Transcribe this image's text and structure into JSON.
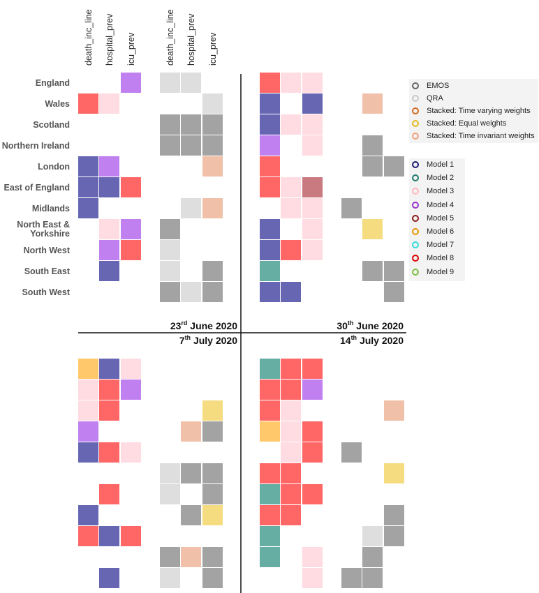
{
  "rows": [
    "England",
    "Wales",
    "Scotland",
    "Northern Ireland",
    "London",
    "East of England",
    "Midlands",
    "North East &\nYorkshire",
    "North West",
    "South East",
    "South West"
  ],
  "columns": [
    "death_inc_line",
    "hospital_prev",
    "icu_prev",
    "death_inc_line",
    "hospital_prev",
    "icu_prev"
  ],
  "panels": [
    {
      "date_day": "23",
      "date_suffix": "rd",
      "date_rest": " June 2020"
    },
    {
      "date_day": "30",
      "date_suffix": "th",
      "date_rest": " June 2020"
    },
    {
      "date_day": "7",
      "date_suffix": "th",
      "date_rest": " July 2020"
    },
    {
      "date_day": "14",
      "date_suffix": "th",
      "date_rest": " July 2020"
    }
  ],
  "legend_methods": [
    {
      "label": "EMOS",
      "color": "#666666"
    },
    {
      "label": "QRA",
      "color": "#c8c8c8"
    },
    {
      "label": "Stacked: Time varying weights",
      "color": "#d2691e"
    },
    {
      "label": "Stacked: Equal weights",
      "color": "#e8b820"
    },
    {
      "label": "Stacked: Time invariant weights",
      "color": "#f0a080"
    }
  ],
  "legend_models": [
    {
      "label": "Model 1",
      "color": "#191970"
    },
    {
      "label": "Model 2",
      "color": "#1f7a6e"
    },
    {
      "label": "Model 3",
      "color": "#ffb6c1"
    },
    {
      "label": "Model 4",
      "color": "#9932cc"
    },
    {
      "label": "Model 5",
      "color": "#8b1a1a"
    },
    {
      "label": "Model 6",
      "color": "#e69500"
    },
    {
      "label": "Model 7",
      "color": "#33dddd"
    },
    {
      "label": "Model 8",
      "color": "#dd0000"
    },
    {
      "label": "Model 9",
      "color": "#7cc242"
    }
  ],
  "fills": {
    "Model 1": "#6666b3",
    "Model 2": "#66ada4",
    "Model 3": "#ffdbe2",
    "Model 4": "#c080f0",
    "Model 5": "#c87a80",
    "Model 6": "#ffc96b",
    "Model 8": "#ff6666",
    "EMOS": "#a3a3a3",
    "QRA": "#dedede",
    "Stacked: Equal weights": "#f5dc80",
    "Stacked: Time invariant weights": "#f0c0a8"
  },
  "chart_data": {
    "type": "heatmap",
    "x": [
      "death_inc_line",
      "hospital_prev",
      "icu_prev",
      "death_inc_line",
      "hospital_prev",
      "icu_prev"
    ],
    "y": [
      "England",
      "Wales",
      "Scotland",
      "Northern Ireland",
      "London",
      "East of England",
      "Midlands",
      "North East & Yorkshire",
      "North West",
      "South East",
      "South West"
    ],
    "panels": [
      {
        "date": "23rd June 2020",
        "cells": [
          [
            null,
            null,
            "Model 4",
            "QRA",
            "QRA",
            null
          ],
          [
            "Model 8",
            "Model 3",
            null,
            null,
            null,
            "QRA"
          ],
          [
            null,
            null,
            null,
            "EMOS",
            "EMOS",
            "EMOS"
          ],
          [
            null,
            null,
            null,
            "EMOS",
            "EMOS",
            "EMOS"
          ],
          [
            "Model 1",
            "Model 4",
            null,
            null,
            null,
            "Stacked: Time invariant weights"
          ],
          [
            "Model 1",
            "Model 1",
            "Model 8",
            null,
            null,
            null
          ],
          [
            "Model 1",
            null,
            null,
            null,
            "QRA",
            "Stacked: Time invariant weights"
          ],
          [
            null,
            "Model 3",
            "Model 4",
            "EMOS",
            null,
            null
          ],
          [
            null,
            "Model 4",
            "Model 8",
            "QRA",
            null,
            null
          ],
          [
            null,
            "Model 1",
            null,
            "QRA",
            null,
            "EMOS"
          ],
          [
            null,
            null,
            null,
            "EMOS",
            "QRA",
            "EMOS"
          ]
        ]
      },
      {
        "date": "30th June 2020",
        "cells": [
          [
            "Model 8",
            "Model 3",
            "Model 3",
            null,
            null,
            null
          ],
          [
            "Model 1",
            null,
            "Model 1",
            null,
            "Stacked: Time invariant weights",
            null
          ],
          [
            "Model 1",
            "Model 3",
            "Model 3",
            null,
            null,
            null
          ],
          [
            "Model 4",
            null,
            "Model 3",
            null,
            "EMOS",
            null
          ],
          [
            "Model 8",
            null,
            null,
            null,
            "EMOS",
            "EMOS"
          ],
          [
            "Model 8",
            "Model 3",
            "Model 5",
            null,
            null,
            null
          ],
          [
            null,
            "Model 3",
            "Model 3",
            "EMOS",
            null,
            null
          ],
          [
            "Model 1",
            null,
            "Model 3",
            null,
            "Stacked: Equal weights",
            null
          ],
          [
            "Model 1",
            "Model 8",
            "Model 3",
            null,
            null,
            null
          ],
          [
            "Model 2",
            null,
            null,
            null,
            "EMOS",
            "EMOS"
          ],
          [
            "Model 1",
            "Model 1",
            null,
            null,
            null,
            "EMOS"
          ]
        ]
      },
      {
        "date": "7th July 2020",
        "cells": [
          [
            "Model 6",
            "Model 1",
            "Model 3",
            null,
            null,
            null
          ],
          [
            "Model 3",
            "Model 8",
            "Model 4",
            null,
            null,
            null
          ],
          [
            "Model 3",
            "Model 8",
            null,
            null,
            null,
            "Stacked: Equal weights"
          ],
          [
            "Model 4",
            null,
            null,
            null,
            "Stacked: Time invariant weights",
            "EMOS"
          ],
          [
            "Model 1",
            "Model 8",
            "Model 3",
            null,
            null,
            null
          ],
          [
            null,
            null,
            null,
            "QRA",
            "EMOS",
            "EMOS"
          ],
          [
            null,
            "Model 8",
            null,
            "QRA",
            null,
            "EMOS"
          ],
          [
            "Model 1",
            null,
            null,
            null,
            "EMOS",
            "Stacked: Equal weights"
          ],
          [
            "Model 8",
            "Model 1",
            "Model 8",
            null,
            null,
            null
          ],
          [
            null,
            null,
            null,
            "EMOS",
            "Stacked: Time invariant weights",
            "EMOS"
          ],
          [
            null,
            "Model 1",
            null,
            "QRA",
            null,
            "EMOS"
          ]
        ]
      },
      {
        "date": "14th July 2020",
        "cells": [
          [
            "Model 2",
            "Model 8",
            "Model 8",
            null,
            null,
            null
          ],
          [
            "Model 8",
            "Model 8",
            "Model 4",
            null,
            null,
            null
          ],
          [
            "Model 8",
            "Model 3",
            null,
            null,
            null,
            "Stacked: Time invariant weights"
          ],
          [
            "Model 6",
            "Model 3",
            "Model 8",
            null,
            null,
            null
          ],
          [
            null,
            "Model 3",
            "Model 8",
            "EMOS",
            null,
            null
          ],
          [
            "Model 8",
            "Model 8",
            null,
            null,
            null,
            "Stacked: Equal weights"
          ],
          [
            "Model 2",
            "Model 8",
            "Model 8",
            null,
            null,
            null
          ],
          [
            "Model 8",
            "Model 8",
            null,
            null,
            null,
            "EMOS"
          ],
          [
            "Model 2",
            null,
            null,
            null,
            "QRA",
            "EMOS"
          ],
          [
            "Model 2",
            null,
            "Model 3",
            null,
            "EMOS",
            null
          ],
          [
            null,
            null,
            "Model 3",
            "EMOS",
            "EMOS",
            null
          ]
        ]
      }
    ]
  }
}
